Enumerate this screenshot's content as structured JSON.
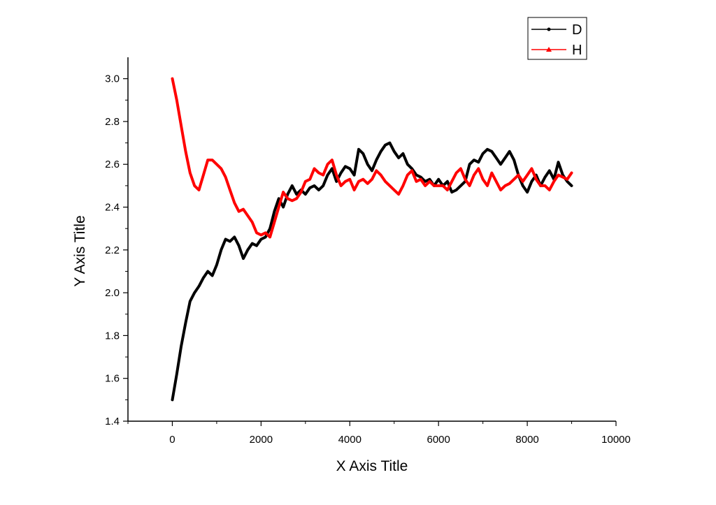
{
  "chart_data": {
    "type": "line",
    "title": "",
    "xlabel": "X Axis Title",
    "ylabel": "Y Axis Title",
    "xlim": [
      -1000,
      10000
    ],
    "ylim": [
      1.4,
      3.1
    ],
    "xticks": [
      0,
      2000,
      4000,
      6000,
      8000,
      10000
    ],
    "yticks": [
      1.4,
      1.6,
      1.8,
      2.0,
      2.2,
      2.4,
      2.6,
      2.8,
      3.0
    ],
    "xtick_labels": [
      "0",
      "2000",
      "4000",
      "6000",
      "8000",
      "10000"
    ],
    "ytick_labels": [
      "1.4",
      "1.6",
      "1.8",
      "2.0",
      "2.2",
      "2.4",
      "2.6",
      "2.8",
      "3.0"
    ],
    "grid": false,
    "legend_position": "top-right",
    "series": [
      {
        "name": "D",
        "color": "#000000",
        "marker": "circle",
        "x": [
          0,
          100,
          200,
          300,
          400,
          500,
          600,
          700,
          800,
          900,
          1000,
          1100,
          1200,
          1300,
          1400,
          1500,
          1600,
          1700,
          1800,
          1900,
          2000,
          2100,
          2200,
          2300,
          2400,
          2500,
          2600,
          2700,
          2800,
          2900,
          3000,
          3100,
          3200,
          3300,
          3400,
          3500,
          3600,
          3700,
          3800,
          3900,
          4000,
          4100,
          4200,
          4300,
          4400,
          4500,
          4600,
          4700,
          4800,
          4900,
          5000,
          5100,
          5200,
          5300,
          5400,
          5500,
          5600,
          5700,
          5800,
          5900,
          6000,
          6100,
          6200,
          6300,
          6400,
          6500,
          6600,
          6700,
          6800,
          6900,
          7000,
          7100,
          7200,
          7300,
          7400,
          7500,
          7600,
          7700,
          7800,
          7900,
          8000,
          8100,
          8200,
          8300,
          8400,
          8500,
          8600,
          8700,
          8800,
          8900,
          9000
        ],
        "values": [
          1.5,
          1.62,
          1.75,
          1.86,
          1.96,
          2.0,
          2.03,
          2.07,
          2.1,
          2.08,
          2.13,
          2.2,
          2.25,
          2.24,
          2.26,
          2.22,
          2.16,
          2.2,
          2.23,
          2.22,
          2.25,
          2.26,
          2.3,
          2.38,
          2.44,
          2.4,
          2.46,
          2.5,
          2.46,
          2.48,
          2.46,
          2.49,
          2.5,
          2.48,
          2.5,
          2.55,
          2.58,
          2.52,
          2.56,
          2.59,
          2.58,
          2.55,
          2.67,
          2.65,
          2.6,
          2.57,
          2.62,
          2.66,
          2.69,
          2.7,
          2.66,
          2.63,
          2.65,
          2.6,
          2.58,
          2.55,
          2.54,
          2.52,
          2.53,
          2.5,
          2.53,
          2.5,
          2.52,
          2.47,
          2.48,
          2.5,
          2.52,
          2.6,
          2.62,
          2.61,
          2.65,
          2.67,
          2.66,
          2.63,
          2.6,
          2.63,
          2.66,
          2.62,
          2.55,
          2.5,
          2.47,
          2.52,
          2.55,
          2.5,
          2.54,
          2.57,
          2.53,
          2.61,
          2.55,
          2.52,
          2.5
        ]
      },
      {
        "name": "H",
        "color": "#ff0000",
        "marker": "triangle",
        "x": [
          0,
          100,
          200,
          300,
          400,
          500,
          600,
          700,
          800,
          900,
          1000,
          1100,
          1200,
          1300,
          1400,
          1500,
          1600,
          1700,
          1800,
          1900,
          2000,
          2100,
          2200,
          2300,
          2400,
          2500,
          2600,
          2700,
          2800,
          2900,
          3000,
          3100,
          3200,
          3300,
          3400,
          3500,
          3600,
          3700,
          3800,
          3900,
          4000,
          4100,
          4200,
          4300,
          4400,
          4500,
          4600,
          4700,
          4800,
          4900,
          5000,
          5100,
          5200,
          5300,
          5400,
          5500,
          5600,
          5700,
          5800,
          5900,
          6000,
          6100,
          6200,
          6300,
          6400,
          6500,
          6600,
          6700,
          6800,
          6900,
          7000,
          7100,
          7200,
          7300,
          7400,
          7500,
          7600,
          7700,
          7800,
          7900,
          8000,
          8100,
          8200,
          8300,
          8400,
          8500,
          8600,
          8700,
          8800,
          8900,
          9000
        ],
        "values": [
          3.0,
          2.9,
          2.78,
          2.66,
          2.56,
          2.5,
          2.48,
          2.55,
          2.62,
          2.62,
          2.6,
          2.58,
          2.54,
          2.48,
          2.42,
          2.38,
          2.39,
          2.36,
          2.33,
          2.28,
          2.27,
          2.28,
          2.26,
          2.33,
          2.4,
          2.47,
          2.44,
          2.43,
          2.44,
          2.47,
          2.52,
          2.53,
          2.58,
          2.56,
          2.55,
          2.6,
          2.62,
          2.55,
          2.5,
          2.52,
          2.53,
          2.48,
          2.52,
          2.53,
          2.51,
          2.53,
          2.57,
          2.55,
          2.52,
          2.5,
          2.48,
          2.46,
          2.5,
          2.55,
          2.57,
          2.52,
          2.53,
          2.5,
          2.52,
          2.5,
          2.5,
          2.5,
          2.48,
          2.52,
          2.56,
          2.58,
          2.53,
          2.5,
          2.55,
          2.58,
          2.53,
          2.5,
          2.56,
          2.52,
          2.48,
          2.5,
          2.51,
          2.53,
          2.55,
          2.52,
          2.55,
          2.58,
          2.53,
          2.5,
          2.5,
          2.48,
          2.52,
          2.55,
          2.54,
          2.53,
          2.56
        ]
      }
    ]
  }
}
